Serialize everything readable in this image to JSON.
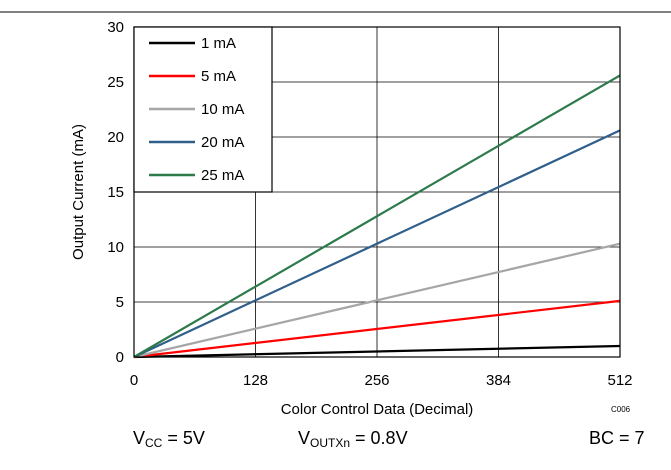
{
  "chart_data": {
    "type": "line",
    "xlabel": "Color Control Data (Decimal)",
    "ylabel": "Output Current (mA)",
    "xlim": [
      0,
      512
    ],
    "ylim": [
      0,
      30
    ],
    "xticks": [
      0,
      128,
      256,
      384,
      512
    ],
    "yticks": [
      0,
      5,
      10,
      15,
      20,
      25,
      30
    ],
    "grid": true,
    "legend_position": "top-left",
    "series": [
      {
        "name": "1 mA",
        "color": "#000000",
        "x": [
          0,
          512
        ],
        "y": [
          0,
          1.0
        ]
      },
      {
        "name": "5 mA",
        "color": "#ff0000",
        "x": [
          0,
          512
        ],
        "y": [
          0,
          5.1
        ]
      },
      {
        "name": "10 mA",
        "color": "#a6a6a6",
        "x": [
          0,
          512
        ],
        "y": [
          0,
          10.3
        ]
      },
      {
        "name": "20 mA",
        "color": "#2f5f8a",
        "x": [
          0,
          512
        ],
        "y": [
          0,
          20.6
        ]
      },
      {
        "name": "25 mA",
        "color": "#2d7a4a",
        "x": [
          0,
          512
        ],
        "y": [
          0,
          25.6
        ]
      }
    ],
    "code_label": "C006"
  },
  "conditions": {
    "vcc": {
      "main": "V",
      "sub": "CC",
      "rest": " = 5V"
    },
    "voutxn": {
      "main": "V",
      "sub": "OUTXn",
      "rest": " = 0.8V"
    },
    "bc": "BC = 7"
  }
}
